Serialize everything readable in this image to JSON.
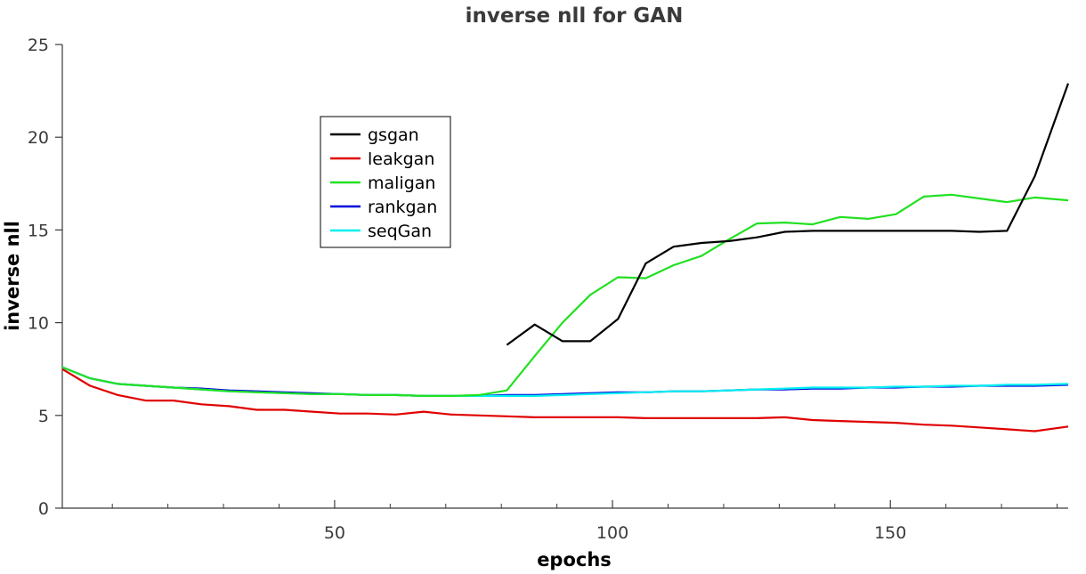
{
  "chart_data": {
    "type": "line",
    "title": "inverse nll for GAN",
    "xlabel": "epochs",
    "ylabel": "inverse nll",
    "xlim": [
      1,
      182
    ],
    "ylim": [
      0,
      25
    ],
    "x_ticks": [
      50,
      100,
      150
    ],
    "x_minor_ticks": [
      10,
      20,
      30,
      40,
      60,
      70,
      80,
      90,
      110,
      120,
      130,
      140,
      160,
      170,
      180
    ],
    "y_ticks": [
      0,
      5,
      10,
      15,
      20,
      25
    ],
    "grid": false,
    "legend_position": "upper-left-center",
    "series": [
      {
        "name": "gsgan",
        "color": "#000000",
        "x": [
          81,
          86,
          91,
          96,
          101,
          106,
          111,
          116,
          121,
          126,
          131,
          136,
          141,
          146,
          151,
          156,
          161,
          166,
          171,
          176,
          182
        ],
        "y": [
          8.8,
          9.9,
          9.0,
          9.0,
          10.2,
          13.2,
          14.1,
          14.3,
          14.4,
          14.6,
          14.9,
          14.95,
          14.95,
          14.95,
          14.95,
          14.95,
          14.95,
          14.9,
          14.95,
          17.9,
          22.9
        ]
      },
      {
        "name": "leakgan",
        "color": "#e00000",
        "x": [
          1,
          6,
          11,
          16,
          21,
          26,
          31,
          36,
          41,
          46,
          51,
          56,
          61,
          66,
          71,
          76,
          81,
          86,
          91,
          96,
          101,
          106,
          111,
          116,
          121,
          126,
          131,
          136,
          141,
          146,
          151,
          156,
          161,
          166,
          171,
          176,
          182
        ],
        "y": [
          7.5,
          6.6,
          6.1,
          5.8,
          5.8,
          5.6,
          5.5,
          5.3,
          5.3,
          5.2,
          5.1,
          5.1,
          5.05,
          5.2,
          5.05,
          5.0,
          4.95,
          4.9,
          4.9,
          4.9,
          4.9,
          4.85,
          4.85,
          4.85,
          4.85,
          4.85,
          4.9,
          4.75,
          4.7,
          4.65,
          4.6,
          4.5,
          4.45,
          4.35,
          4.25,
          4.15,
          4.4
        ]
      },
      {
        "name": "maligan",
        "color": "#22e022",
        "x": [
          1,
          6,
          11,
          16,
          21,
          26,
          31,
          36,
          41,
          46,
          51,
          56,
          61,
          66,
          71,
          76,
          81,
          86,
          91,
          96,
          101,
          106,
          111,
          116,
          121,
          126,
          131,
          136,
          141,
          146,
          151,
          156,
          161,
          166,
          171,
          176,
          182
        ],
        "y": [
          7.6,
          7.0,
          6.7,
          6.6,
          6.5,
          6.4,
          6.3,
          6.25,
          6.2,
          6.15,
          6.15,
          6.1,
          6.1,
          6.05,
          6.05,
          6.1,
          6.35,
          8.2,
          10.0,
          11.5,
          12.45,
          12.4,
          13.1,
          13.6,
          14.5,
          15.35,
          15.4,
          15.3,
          15.7,
          15.6,
          15.85,
          16.8,
          16.9,
          16.7,
          16.5,
          16.75,
          16.6
        ]
      },
      {
        "name": "rankgan",
        "color": "#0000dd",
        "x": [
          1,
          6,
          11,
          16,
          21,
          26,
          31,
          36,
          41,
          46,
          51,
          56,
          61,
          66,
          71,
          76,
          81,
          86,
          91,
          96,
          101,
          106,
          111,
          116,
          121,
          126,
          131,
          136,
          141,
          146,
          151,
          156,
          161,
          166,
          171,
          176,
          182
        ],
        "y": [
          7.6,
          7.0,
          6.7,
          6.6,
          6.5,
          6.45,
          6.35,
          6.3,
          6.25,
          6.2,
          6.15,
          6.1,
          6.1,
          6.05,
          6.05,
          6.05,
          6.1,
          6.1,
          6.15,
          6.2,
          6.25,
          6.25,
          6.3,
          6.3,
          6.35,
          6.4,
          6.4,
          6.45,
          6.45,
          6.5,
          6.5,
          6.55,
          6.55,
          6.6,
          6.6,
          6.6,
          6.65
        ]
      },
      {
        "name": "seqGan",
        "color": "#00f0f0",
        "x": [
          1,
          6,
          11,
          16,
          21,
          26,
          31,
          36,
          41,
          46,
          51,
          56,
          61,
          66,
          71,
          76,
          81,
          86,
          91,
          96,
          101,
          106,
          111,
          116,
          121,
          126,
          131,
          136,
          141,
          146,
          151,
          156,
          161,
          166,
          171,
          176,
          182
        ],
        "y": [
          7.6,
          7.0,
          6.7,
          6.6,
          6.5,
          6.4,
          6.3,
          6.25,
          6.2,
          6.15,
          6.15,
          6.1,
          6.1,
          6.05,
          6.05,
          6.05,
          6.05,
          6.05,
          6.1,
          6.15,
          6.2,
          6.25,
          6.3,
          6.3,
          6.35,
          6.4,
          6.45,
          6.5,
          6.5,
          6.5,
          6.55,
          6.55,
          6.6,
          6.6,
          6.65,
          6.65,
          6.7
        ]
      }
    ]
  }
}
